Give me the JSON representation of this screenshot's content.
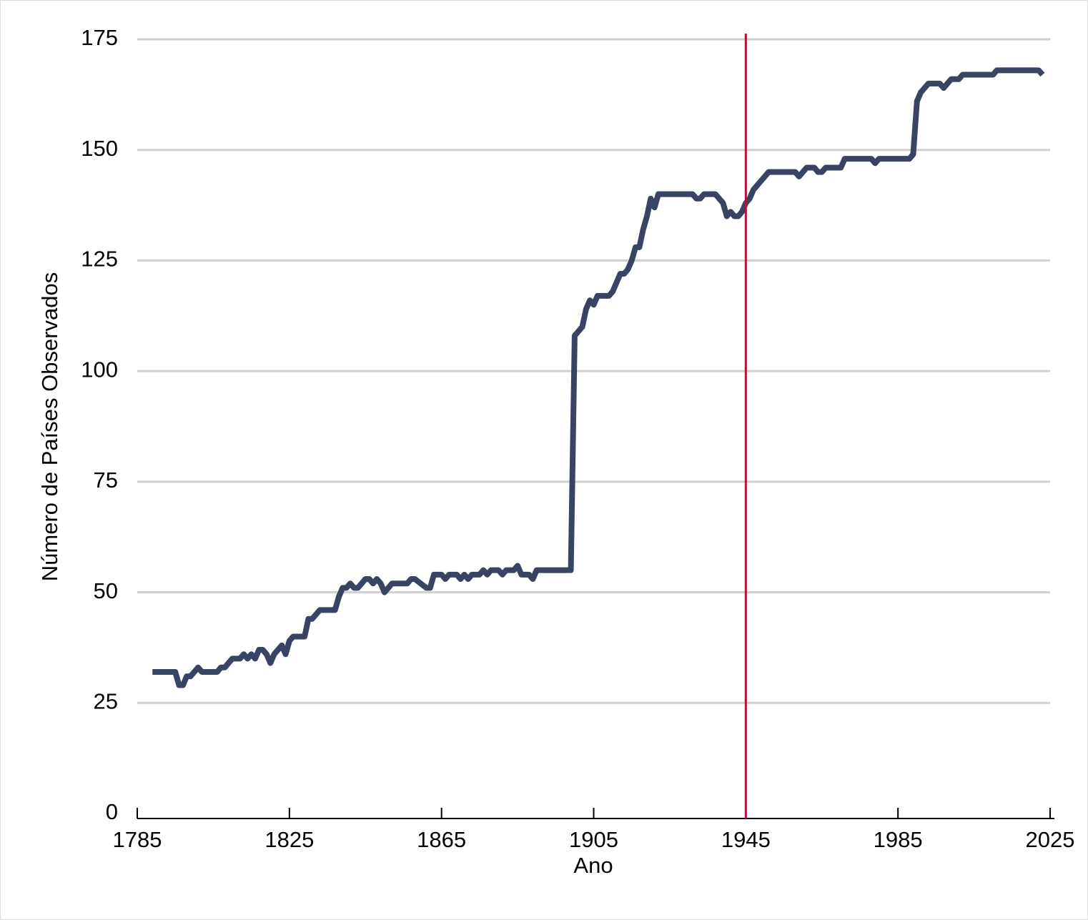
{
  "chart_data": {
    "type": "line",
    "x_label": "Ano",
    "y_label": "Número de Países Observados",
    "xlim": [
      1785,
      2025
    ],
    "xticks": [
      1785,
      1825,
      1865,
      1905,
      1945,
      1985,
      2025
    ],
    "ylim": [
      0,
      175
    ],
    "yticks": [
      0,
      25,
      50,
      75,
      100,
      125,
      150,
      175
    ],
    "grid": true,
    "vline": 1945,
    "vline_color": "#b5123b",
    "series": [
      {
        "color": "#394464",
        "x": [
          1789,
          1795,
          1796,
          1797,
          1798,
          1799,
          1801,
          1802,
          1806,
          1807,
          1808,
          1810,
          1812,
          1813,
          1814,
          1815,
          1816,
          1817,
          1818,
          1819,
          1820,
          1821,
          1823,
          1824,
          1825,
          1826,
          1829,
          1830,
          1831,
          1833,
          1837,
          1838,
          1839,
          1840,
          1841,
          1842,
          1843,
          1845,
          1846,
          1847,
          1848,
          1849,
          1850,
          1852,
          1856,
          1857,
          1858,
          1861,
          1862,
          1863,
          1865,
          1866,
          1867,
          1869,
          1870,
          1871,
          1872,
          1873,
          1875,
          1876,
          1877,
          1878,
          1880,
          1881,
          1882,
          1884,
          1885,
          1886,
          1888,
          1889,
          1890,
          1899,
          1900,
          1901,
          1902,
          1903,
          1904,
          1905,
          1906,
          1909,
          1910,
          1912,
          1913,
          1914,
          1915,
          1916,
          1917,
          1918,
          1919,
          1920,
          1921,
          1922,
          1931,
          1932,
          1933,
          1934,
          1937,
          1939,
          1940,
          1941,
          1942,
          1943,
          1944,
          1945,
          1946,
          1947,
          1949,
          1951,
          1958,
          1959,
          1960,
          1961,
          1963,
          1964,
          1965,
          1966,
          1970,
          1971,
          1978,
          1979,
          1980,
          1988,
          1989,
          1990,
          1991,
          1993,
          1996,
          1997,
          1999,
          2001,
          2002,
          2010,
          2011,
          2022,
          2023
        ],
        "values": [
          32,
          32,
          29,
          29,
          31,
          31,
          33,
          32,
          32,
          33,
          33,
          35,
          35,
          36,
          35,
          36,
          35,
          37,
          37,
          36,
          34,
          36,
          38,
          36,
          39,
          40,
          40,
          44,
          44,
          46,
          46,
          49,
          51,
          51,
          52,
          51,
          51,
          53,
          53,
          52,
          53,
          52,
          50,
          52,
          52,
          53,
          53,
          51,
          51,
          54,
          54,
          53,
          54,
          54,
          53,
          54,
          53,
          54,
          54,
          55,
          54,
          55,
          55,
          54,
          55,
          55,
          56,
          54,
          54,
          53,
          55,
          55,
          108,
          109,
          110,
          114,
          116,
          115,
          117,
          117,
          118,
          122,
          122,
          123,
          125,
          128,
          128,
          132,
          135,
          139,
          137,
          140,
          140,
          139,
          139,
          140,
          140,
          138,
          135,
          136,
          135,
          135,
          136,
          138,
          139,
          141,
          143,
          145,
          145,
          144,
          145,
          146,
          146,
          145,
          145,
          146,
          146,
          148,
          148,
          147,
          148,
          148,
          149,
          161,
          163,
          165,
          165,
          164,
          166,
          166,
          167,
          167,
          168,
          168,
          167
        ]
      }
    ]
  }
}
